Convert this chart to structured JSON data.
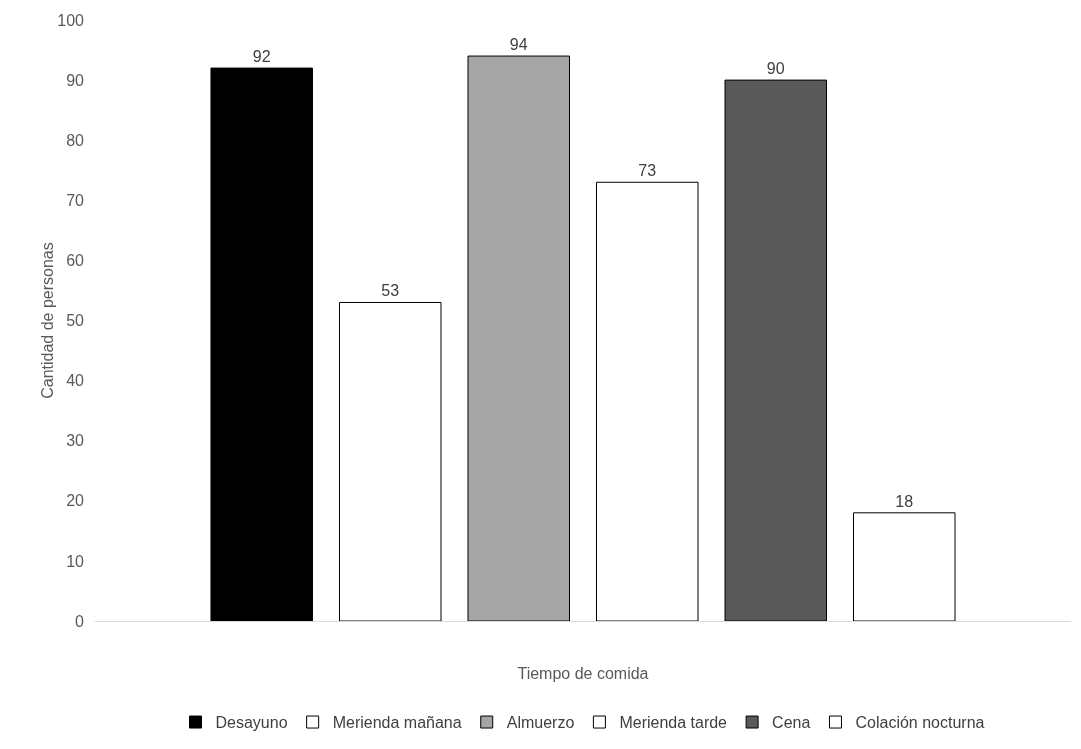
{
  "chart_data": {
    "type": "bar",
    "xlabel": "Tiempo de comida",
    "ylabel": "Cantidad de personas",
    "categories": [
      null
    ],
    "series": [
      {
        "name": "Desayuno",
        "color": "#000000",
        "values": [
          92
        ]
      },
      {
        "name": "Merienda mañana",
        "color": "#ffffff",
        "values": [
          53
        ]
      },
      {
        "name": "Almuerzo",
        "color": "#a5a5a5",
        "values": [
          94
        ]
      },
      {
        "name": "Merienda tarde",
        "color": "#ffffff",
        "values": [
          73
        ]
      },
      {
        "name": "Cena",
        "color": "#595959",
        "values": [
          90
        ]
      },
      {
        "name": "Colación nocturna",
        "color": "#ffffff",
        "values": [
          18
        ]
      }
    ],
    "ylim": [
      0,
      100
    ],
    "yticks": [
      0,
      10,
      20,
      30,
      40,
      50,
      60,
      70,
      80,
      90,
      100
    ],
    "grid": false,
    "legend": "bottom",
    "data_labels": true
  }
}
